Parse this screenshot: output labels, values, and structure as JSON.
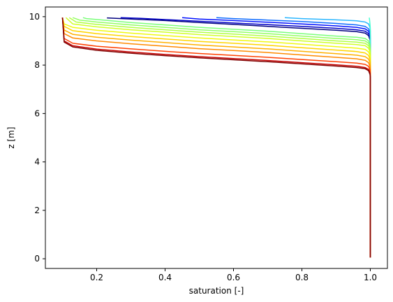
{
  "chart_data": {
    "type": "line",
    "title": "",
    "xlabel": "saturation [-]",
    "ylabel": "z [m]",
    "xlim": [
      0.05,
      1.05
    ],
    "ylim": [
      -0.4,
      10.4
    ],
    "xticks": [
      0.2,
      0.4,
      0.6,
      0.8,
      1.0
    ],
    "xtick_labels": [
      "0.2",
      "0.4",
      "0.6",
      "0.8",
      "1.0"
    ],
    "yticks": [
      0,
      2,
      4,
      6,
      8,
      10
    ],
    "ytick_labels": [
      "0",
      "2",
      "4",
      "6",
      "8",
      "10"
    ],
    "grid": false,
    "legend": "none",
    "colormap": "jet",
    "series": [
      {
        "color": "#00007f",
        "points": [
          [
            1.0,
            0.05
          ],
          [
            1.0,
            8.9
          ],
          [
            0.999,
            9.05
          ],
          [
            0.995,
            9.22
          ],
          [
            0.985,
            9.32
          ],
          [
            0.96,
            9.38
          ],
          [
            0.9,
            9.44
          ],
          [
            0.8,
            9.52
          ],
          [
            0.7,
            9.6
          ],
          [
            0.6,
            9.68
          ],
          [
            0.5,
            9.76
          ],
          [
            0.4,
            9.84
          ],
          [
            0.3,
            9.9
          ],
          [
            0.23,
            9.95
          ]
        ]
      },
      {
        "color": "#0000c4",
        "points": [
          [
            1.0,
            0.05
          ],
          [
            1.0,
            9.0
          ],
          [
            0.999,
            9.15
          ],
          [
            0.995,
            9.3
          ],
          [
            0.985,
            9.4
          ],
          [
            0.96,
            9.46
          ],
          [
            0.9,
            9.52
          ],
          [
            0.8,
            9.6
          ],
          [
            0.7,
            9.67
          ],
          [
            0.6,
            9.74
          ],
          [
            0.5,
            9.81
          ],
          [
            0.4,
            9.88
          ],
          [
            0.33,
            9.93
          ],
          [
            0.27,
            9.96
          ]
        ]
      },
      {
        "color": "#0010ff",
        "points": [
          [
            1.0,
            0.05
          ],
          [
            1.0,
            9.1
          ],
          [
            0.999,
            9.25
          ],
          [
            0.995,
            9.4
          ],
          [
            0.985,
            9.5
          ],
          [
            0.96,
            9.56
          ],
          [
            0.9,
            9.62
          ],
          [
            0.8,
            9.7
          ],
          [
            0.7,
            9.77
          ],
          [
            0.6,
            9.84
          ],
          [
            0.5,
            9.9
          ],
          [
            0.45,
            9.96
          ]
        ]
      },
      {
        "color": "#0d6bff",
        "points": [
          [
            1.0,
            0.05
          ],
          [
            1.0,
            9.2
          ],
          [
            0.999,
            9.35
          ],
          [
            0.995,
            9.5
          ],
          [
            0.985,
            9.6
          ],
          [
            0.96,
            9.66
          ],
          [
            0.9,
            9.72
          ],
          [
            0.8,
            9.8
          ],
          [
            0.7,
            9.86
          ],
          [
            0.6,
            9.92
          ],
          [
            0.55,
            9.96
          ]
        ]
      },
      {
        "color": "#2ab6ff",
        "points": [
          [
            1.0,
            0.05
          ],
          [
            1.0,
            9.4
          ],
          [
            0.999,
            9.55
          ],
          [
            0.995,
            9.7
          ],
          [
            0.985,
            9.78
          ],
          [
            0.96,
            9.83
          ],
          [
            0.9,
            9.87
          ],
          [
            0.8,
            9.92
          ],
          [
            0.75,
            9.96
          ]
        ]
      },
      {
        "color": "#4affd2",
        "points": [
          [
            1.0,
            0.05
          ],
          [
            1.0,
            9.5
          ],
          [
            0.999,
            9.7
          ],
          [
            0.998,
            9.85
          ],
          [
            0.997,
            9.96
          ]
        ]
      },
      {
        "color": "#7aff7a",
        "points": [
          [
            1.0,
            0.05
          ],
          [
            1.0,
            8.7
          ],
          [
            0.999,
            8.85
          ],
          [
            0.995,
            9.0
          ],
          [
            0.985,
            9.1
          ],
          [
            0.96,
            9.15
          ],
          [
            0.9,
            9.2
          ],
          [
            0.8,
            9.3
          ],
          [
            0.7,
            9.4
          ],
          [
            0.6,
            9.48
          ],
          [
            0.5,
            9.56
          ],
          [
            0.4,
            9.66
          ],
          [
            0.3,
            9.76
          ],
          [
            0.22,
            9.86
          ],
          [
            0.17,
            9.92
          ],
          [
            0.16,
            9.96
          ]
        ]
      },
      {
        "color": "#93ff63",
        "points": [
          [
            1.0,
            0.05
          ],
          [
            1.0,
            8.6
          ],
          [
            0.999,
            8.75
          ],
          [
            0.995,
            8.9
          ],
          [
            0.985,
            9.0
          ],
          [
            0.96,
            9.05
          ],
          [
            0.9,
            9.1
          ],
          [
            0.8,
            9.2
          ],
          [
            0.7,
            9.3
          ],
          [
            0.6,
            9.38
          ],
          [
            0.5,
            9.46
          ],
          [
            0.4,
            9.56
          ],
          [
            0.3,
            9.66
          ],
          [
            0.2,
            9.78
          ],
          [
            0.15,
            9.86
          ],
          [
            0.13,
            9.96
          ]
        ]
      },
      {
        "color": "#b2ff44",
        "points": [
          [
            1.0,
            0.05
          ],
          [
            1.0,
            8.5
          ],
          [
            0.999,
            8.65
          ],
          [
            0.995,
            8.8
          ],
          [
            0.985,
            8.9
          ],
          [
            0.96,
            8.95
          ],
          [
            0.9,
            9.0
          ],
          [
            0.8,
            9.1
          ],
          [
            0.7,
            9.2
          ],
          [
            0.6,
            9.28
          ],
          [
            0.5,
            9.36
          ],
          [
            0.4,
            9.46
          ],
          [
            0.3,
            9.56
          ],
          [
            0.2,
            9.68
          ],
          [
            0.14,
            9.78
          ],
          [
            0.12,
            9.96
          ]
        ]
      },
      {
        "color": "#d1ff26",
        "points": [
          [
            1.0,
            0.05
          ],
          [
            1.0,
            8.4
          ],
          [
            0.999,
            8.55
          ],
          [
            0.995,
            8.7
          ],
          [
            0.985,
            8.8
          ],
          [
            0.96,
            8.85
          ],
          [
            0.9,
            8.9
          ],
          [
            0.8,
            9.0
          ],
          [
            0.7,
            9.1
          ],
          [
            0.6,
            9.18
          ],
          [
            0.5,
            9.26
          ],
          [
            0.4,
            9.36
          ],
          [
            0.3,
            9.46
          ],
          [
            0.2,
            9.58
          ],
          [
            0.13,
            9.7
          ],
          [
            0.11,
            9.96
          ]
        ]
      },
      {
        "color": "#f0f90f",
        "points": [
          [
            1.0,
            0.05
          ],
          [
            1.0,
            8.25
          ],
          [
            0.999,
            8.4
          ],
          [
            0.995,
            8.55
          ],
          [
            0.985,
            8.65
          ],
          [
            0.96,
            8.7
          ],
          [
            0.9,
            8.76
          ],
          [
            0.8,
            8.86
          ],
          [
            0.7,
            8.96
          ],
          [
            0.6,
            9.04
          ],
          [
            0.5,
            9.12
          ],
          [
            0.4,
            9.22
          ],
          [
            0.3,
            9.32
          ],
          [
            0.2,
            9.44
          ],
          [
            0.13,
            9.56
          ],
          [
            0.105,
            9.7
          ],
          [
            0.1,
            9.96
          ]
        ]
      },
      {
        "color": "#ffd500",
        "points": [
          [
            1.0,
            0.05
          ],
          [
            1.0,
            8.1
          ],
          [
            0.999,
            8.25
          ],
          [
            0.995,
            8.4
          ],
          [
            0.985,
            8.5
          ],
          [
            0.96,
            8.56
          ],
          [
            0.9,
            8.62
          ],
          [
            0.8,
            8.72
          ],
          [
            0.7,
            8.82
          ],
          [
            0.6,
            8.9
          ],
          [
            0.5,
            8.98
          ],
          [
            0.4,
            9.08
          ],
          [
            0.3,
            9.18
          ],
          [
            0.2,
            9.3
          ],
          [
            0.13,
            9.42
          ],
          [
            0.105,
            9.6
          ],
          [
            0.1,
            9.96
          ]
        ]
      },
      {
        "color": "#ffb000",
        "points": [
          [
            1.0,
            0.05
          ],
          [
            1.0,
            7.95
          ],
          [
            0.999,
            8.1
          ],
          [
            0.995,
            8.25
          ],
          [
            0.985,
            8.35
          ],
          [
            0.96,
            8.41
          ],
          [
            0.9,
            8.47
          ],
          [
            0.8,
            8.57
          ],
          [
            0.7,
            8.67
          ],
          [
            0.6,
            8.75
          ],
          [
            0.5,
            8.83
          ],
          [
            0.4,
            8.93
          ],
          [
            0.3,
            9.03
          ],
          [
            0.2,
            9.15
          ],
          [
            0.13,
            9.27
          ],
          [
            0.105,
            9.45
          ],
          [
            0.1,
            9.96
          ]
        ]
      },
      {
        "color": "#ff8a00",
        "points": [
          [
            1.0,
            0.05
          ],
          [
            1.0,
            7.8
          ],
          [
            0.999,
            7.95
          ],
          [
            0.995,
            8.1
          ],
          [
            0.985,
            8.2
          ],
          [
            0.96,
            8.26
          ],
          [
            0.9,
            8.32
          ],
          [
            0.8,
            8.42
          ],
          [
            0.7,
            8.52
          ],
          [
            0.6,
            8.6
          ],
          [
            0.5,
            8.68
          ],
          [
            0.4,
            8.78
          ],
          [
            0.3,
            8.88
          ],
          [
            0.2,
            9.0
          ],
          [
            0.13,
            9.12
          ],
          [
            0.105,
            9.3
          ],
          [
            0.1,
            9.96
          ]
        ]
      },
      {
        "color": "#ff4000",
        "points": [
          [
            1.0,
            0.05
          ],
          [
            1.0,
            7.65
          ],
          [
            0.999,
            7.8
          ],
          [
            0.995,
            7.95
          ],
          [
            0.985,
            8.03
          ],
          [
            0.96,
            8.08
          ],
          [
            0.9,
            8.14
          ],
          [
            0.8,
            8.23
          ],
          [
            0.7,
            8.32
          ],
          [
            0.6,
            8.4
          ],
          [
            0.5,
            8.48
          ],
          [
            0.4,
            8.57
          ],
          [
            0.3,
            8.67
          ],
          [
            0.2,
            8.78
          ],
          [
            0.13,
            8.9
          ],
          [
            0.105,
            9.1
          ],
          [
            0.1,
            9.96
          ]
        ]
      },
      {
        "color": "#c40000",
        "points": [
          [
            1.0,
            0.05
          ],
          [
            1.0,
            7.55
          ],
          [
            0.999,
            7.68
          ],
          [
            0.995,
            7.82
          ],
          [
            0.985,
            7.9
          ],
          [
            0.96,
            7.95
          ],
          [
            0.9,
            8.01
          ],
          [
            0.8,
            8.1
          ],
          [
            0.7,
            8.19
          ],
          [
            0.6,
            8.27
          ],
          [
            0.5,
            8.35
          ],
          [
            0.4,
            8.44
          ],
          [
            0.3,
            8.54
          ],
          [
            0.2,
            8.66
          ],
          [
            0.13,
            8.8
          ],
          [
            0.105,
            9.0
          ],
          [
            0.1,
            9.96
          ]
        ]
      },
      {
        "color": "#7f0000",
        "points": [
          [
            1.0,
            0.05
          ],
          [
            1.0,
            7.5
          ],
          [
            0.999,
            7.62
          ],
          [
            0.995,
            7.77
          ],
          [
            0.985,
            7.85
          ],
          [
            0.96,
            7.9
          ],
          [
            0.9,
            7.96
          ],
          [
            0.8,
            8.05
          ],
          [
            0.7,
            8.14
          ],
          [
            0.6,
            8.22
          ],
          [
            0.5,
            8.3
          ],
          [
            0.4,
            8.39
          ],
          [
            0.3,
            8.49
          ],
          [
            0.2,
            8.61
          ],
          [
            0.13,
            8.75
          ],
          [
            0.105,
            8.95
          ],
          [
            0.1,
            9.96
          ]
        ]
      }
    ]
  }
}
